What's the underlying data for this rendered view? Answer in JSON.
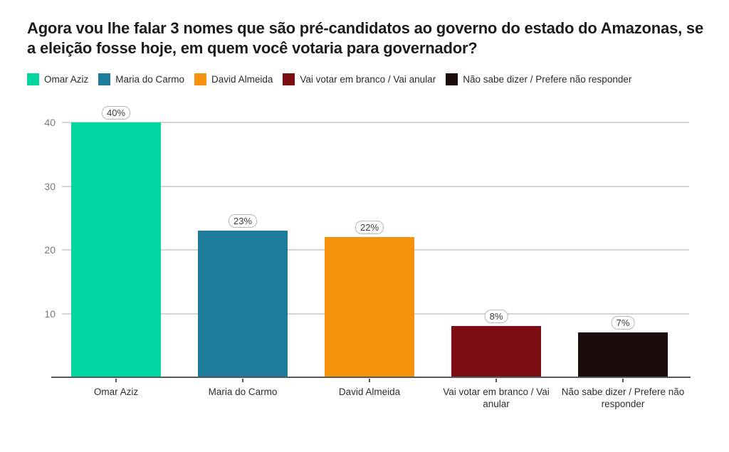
{
  "title": "Agora vou lhe falar 3 nomes que são pré-candidatos ao governo do estado do Amazonas, se a eleição fosse hoje, em quem você votaria para governador?",
  "chart_data": {
    "type": "bar",
    "title": "Agora vou lhe falar 3 nomes que são pré-candidatos ao governo do estado do Amazonas, se a eleição fosse hoje, em quem você votaria para governador?",
    "categories": [
      "Omar Aziz",
      "Maria do Carmo",
      "David Almeida",
      "Vai votar em branco / Vai anular",
      "Não sabe dizer / Prefere não responder"
    ],
    "values": [
      40,
      23,
      22,
      8,
      7
    ],
    "value_labels": [
      "40%",
      "23%",
      "22%",
      "8%",
      "7%"
    ],
    "colors": [
      "#00d6a0",
      "#1e7c9b",
      "#f7920c",
      "#7c0e13",
      "#1c0d0c"
    ],
    "xlabel": "",
    "ylabel": "",
    "ylim": [
      0,
      40
    ],
    "yticks": [
      10,
      20,
      30,
      40
    ],
    "ytick_labels": [
      "10",
      "20",
      "30",
      "40"
    ],
    "grid": true,
    "legend_position": "top",
    "legend_entries": [
      "Omar Aziz",
      "Maria do Carmo",
      "David Almeida",
      "Vai votar em branco / Vai anular",
      "Não sabe dizer / Prefere não responder"
    ]
  }
}
